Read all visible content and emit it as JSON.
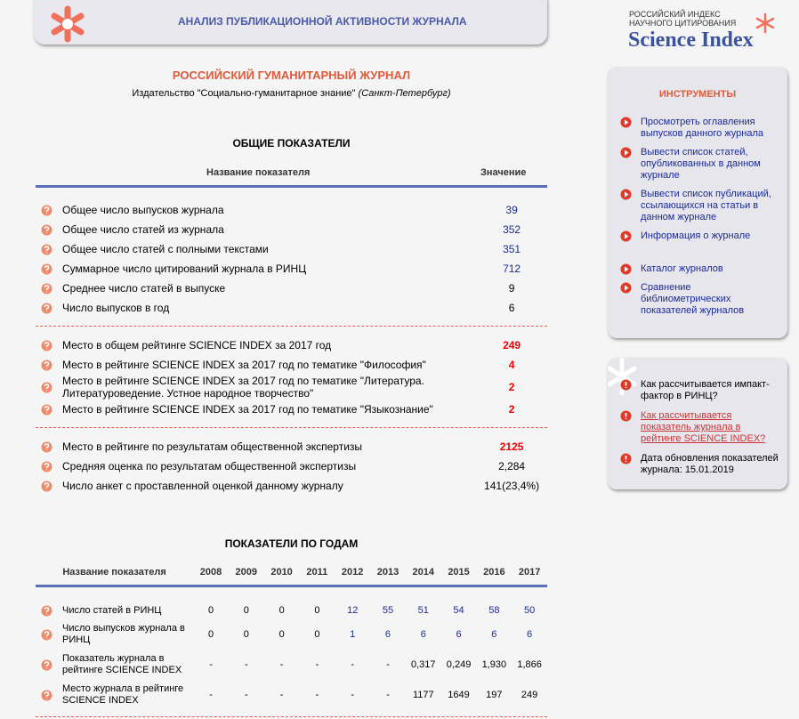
{
  "header": {
    "title": "АНАЛИЗ ПУБЛИКАЦИОННОЙ АКТИВНОСТИ ЖУРНАЛА",
    "logo_caption": "РОССИЙСКИЙ ИНДЕКС НАУЧНОГО ЦИТИРОВАНИЯ",
    "logo_name": "Science Index"
  },
  "journal": {
    "name": "РОССИЙСКИЙ ГУМАНИТАРНЫЙ ЖУРНАЛ",
    "publisher": "Издательство \"Социально-гуманитарное знание\"",
    "city": "(Санкт-Петербург)"
  },
  "general": {
    "title": "ОБЩИЕ ПОКАЗАТЕЛИ",
    "columns": [
      "Название показателя",
      "Значение"
    ],
    "groups": [
      [
        {
          "label": "Общее число выпусков журнала",
          "value": "39"
        },
        {
          "label": "Общее число статей из журнала",
          "value": "352"
        },
        {
          "label": "Общее число статей с полными текстами",
          "value": "351"
        },
        {
          "label": "Суммарное число цитирований журнала в РИНЦ",
          "value": "712"
        },
        {
          "label": "Среднее число статей в выпуске",
          "value": "9"
        },
        {
          "label": "Число выпусков в год",
          "value": "6"
        }
      ],
      [
        {
          "label": "Место в общем рейтинге SCIENCE INDEX за 2017 год",
          "value": "249"
        },
        {
          "label": "Место в рейтинге SCIENCE INDEX за 2017 год по тематике \"Философия\"",
          "value": "4"
        },
        {
          "label": "Место в рейтинге SCIENCE INDEX за 2017 год по тематике \"Литература. Литературоведение. Устное народное творчество\"",
          "value": "2"
        },
        {
          "label": "Место в рейтинге SCIENCE INDEX за 2017 год по тематике \"Языкознание\"",
          "value": "2"
        }
      ],
      [
        {
          "label": "Место в рейтинге по результатам общественной экспертизы",
          "value": "2125"
        },
        {
          "label": "Средняя оценка по результатам общественной экспертизы",
          "value": "2,284"
        },
        {
          "label": "Число анкет с проставленной оценкой данному журналу",
          "value": "141(23,4%)"
        }
      ]
    ]
  },
  "yearly": {
    "title": "ПОКАЗАТЕЛИ ПО ГОДАМ",
    "label_header": "Название показателя",
    "years": [
      "2008",
      "2009",
      "2010",
      "2011",
      "2012",
      "2013",
      "2014",
      "2015",
      "2016",
      "2017"
    ],
    "rows": [
      {
        "label": "Число статей в РИНЦ",
        "values": [
          "0",
          "0",
          "0",
          "0",
          "12",
          "55",
          "51",
          "54",
          "58",
          "50"
        ]
      },
      {
        "label": "Число выпусков журнала в РИНЦ",
        "values": [
          "0",
          "0",
          "0",
          "0",
          "1",
          "6",
          "6",
          "6",
          "6",
          "6"
        ]
      },
      {
        "label": "Показатель журнала в рейтинге SCIENCE INDEX",
        "values": [
          "-",
          "-",
          "-",
          "-",
          "-",
          "-",
          "0,317",
          "0,249",
          "1,930",
          "1,866"
        ]
      },
      {
        "label": "Место журнала в рейтинге SCIENCE INDEX",
        "values": [
          "-",
          "-",
          "-",
          "-",
          "-",
          "-",
          "1177",
          "1649",
          "197",
          "249"
        ]
      }
    ]
  },
  "tools": {
    "title": "ИНСТРУМЕНТЫ",
    "groups": [
      [
        "Просмотреть оглавления выпусков данного журнала",
        "Вывести список статей, опубликованных в данном журнале",
        "Вывести список публикаций, ссылающихся на статьи в данном журнале",
        "Информация о журнале"
      ],
      [
        "Каталог журналов",
        "Сравнение библиометрических показателей журналов"
      ]
    ]
  },
  "info": {
    "items": [
      "Как рассчитывается импакт-фактор в РИНЦ?",
      "Как рассчитывается показатель журнала в рейтинге SCIENCE INDEX?",
      "Дата обновления показателей журнала: 15.01.2019"
    ]
  }
}
